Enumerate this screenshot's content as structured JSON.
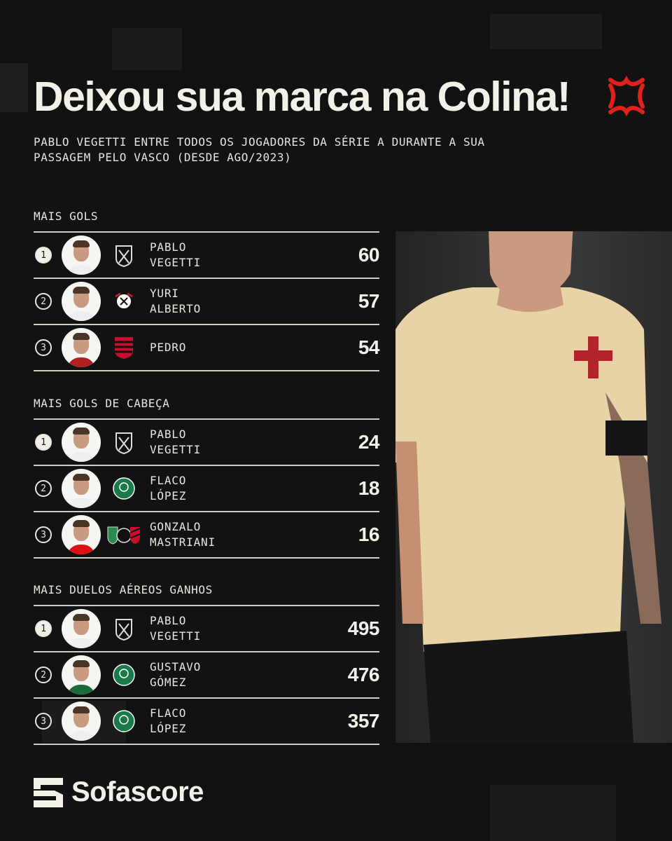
{
  "title": "Deixou sua marca na Colina!",
  "title_icon": "anger-symbol-icon",
  "subtitle": "PABLO VEGETTI ENTRE TODOS OS JOGADORES DA SÉRIE A DURANTE A SUA PASSAGEM PELO VASCO (DESDE AGO/2023)",
  "sections": [
    {
      "label": "MAIS GOLS",
      "rows": [
        {
          "rank": "1",
          "name1": "PABLO",
          "name2": "VEGETTI",
          "club": "vasco",
          "value": "60"
        },
        {
          "rank": "2",
          "name1": "YURI",
          "name2": "ALBERTO",
          "club": "corinthians",
          "value": "57"
        },
        {
          "rank": "3",
          "name1": "PEDRO",
          "name2": "",
          "club": "flamengo",
          "value": "54"
        }
      ]
    },
    {
      "label": "MAIS GOLS DE CABEÇA",
      "rows": [
        {
          "rank": "1",
          "name1": "PABLO",
          "name2": "VEGETTI",
          "club": "vasco",
          "value": "24"
        },
        {
          "rank": "2",
          "name1": "FLACO",
          "name2": "LÓPEZ",
          "club": "palmeiras",
          "value": "18"
        },
        {
          "rank": "3",
          "name1": "GONZALO",
          "name2": "MASTRIANI",
          "club": "america-mg/botafogo/athletico",
          "value": "16"
        }
      ]
    },
    {
      "label": "MAIS DUELOS AÉREOS GANHOS",
      "rows": [
        {
          "rank": "1",
          "name1": "PABLO",
          "name2": "VEGETTI",
          "club": "vasco",
          "value": "495"
        },
        {
          "rank": "2",
          "name1": "GUSTAVO",
          "name2": "GÓMEZ",
          "club": "palmeiras",
          "value": "476"
        },
        {
          "rank": "3",
          "name1": "FLACO",
          "name2": "LÓPEZ",
          "club": "palmeiras",
          "value": "357"
        }
      ]
    }
  ],
  "brand": "Sofascore",
  "colors": {
    "background": "#121212",
    "text": "#f1efe6",
    "accent_red": "#e0201c"
  }
}
